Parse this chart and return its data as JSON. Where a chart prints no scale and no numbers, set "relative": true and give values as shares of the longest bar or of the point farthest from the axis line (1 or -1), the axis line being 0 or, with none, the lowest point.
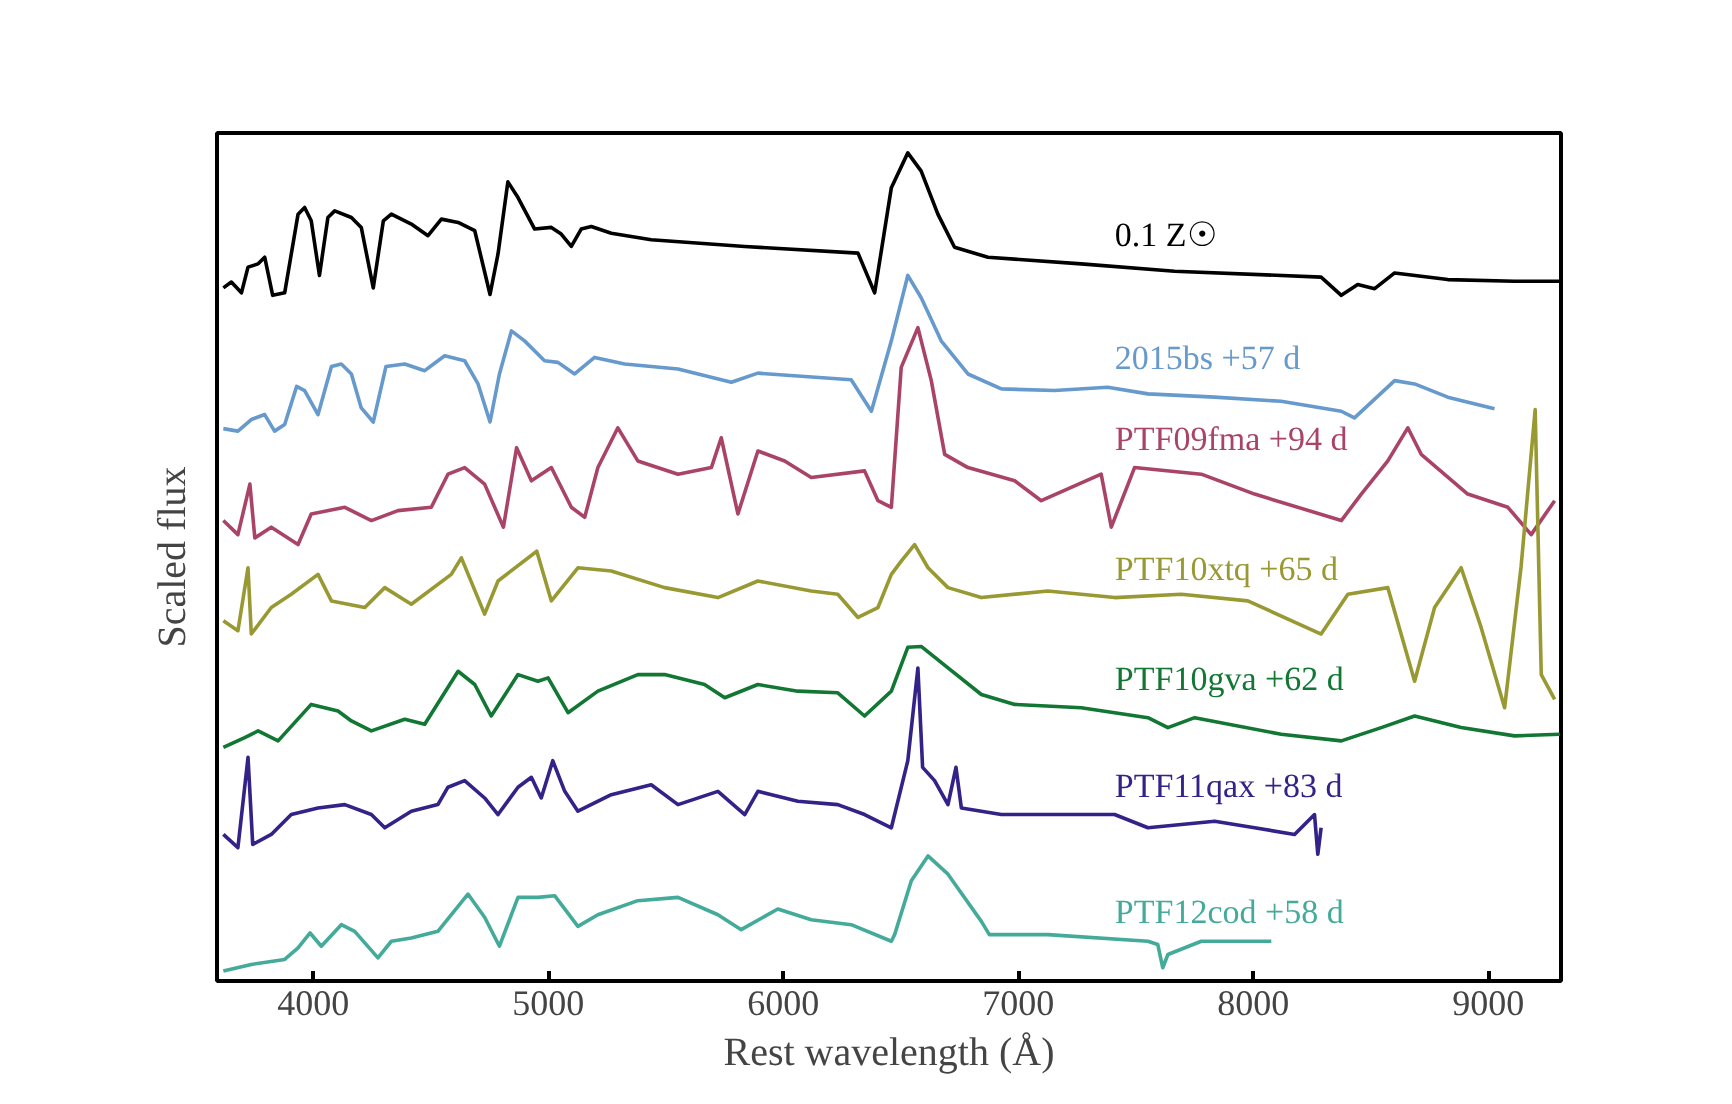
{
  "chart_data": {
    "type": "line",
    "relative": true,
    "xlabel": "Rest wavelength (Å)",
    "ylabel": "Scaled flux",
    "xlim": [
      3590,
      9310
    ],
    "xticks": [
      4000,
      5000,
      6000,
      7000,
      8000,
      9000
    ],
    "tick_labels": "x",
    "grid": false,
    "marker": "none",
    "line_style": "solid",
    "series": [
      {
        "name": "0.1 Z☉",
        "color": "#000000",
        "x": [
          3617,
          3651,
          3694,
          3722,
          3765,
          3793,
          3827,
          3878,
          3935,
          3963,
          3991,
          4026,
          4062,
          4091,
          4162,
          4204,
          4255,
          4298,
          4332,
          4417,
          4488,
          4545,
          4616,
          4687,
          4752,
          4786,
          4828,
          4871,
          4942,
          5013,
          5055,
          5098,
          5140,
          5183,
          5268,
          5438,
          5836,
          6318,
          6389,
          6460,
          6530,
          6587,
          6658,
          6729,
          6871,
          7268,
          7665,
          8289,
          8375,
          8445,
          8517,
          8602,
          8828,
          9112,
          9305
        ],
        "values": [
          0.837,
          0.844,
          0.831,
          0.862,
          0.866,
          0.874,
          0.828,
          0.831,
          0.926,
          0.934,
          0.918,
          0.852,
          0.922,
          0.93,
          0.922,
          0.91,
          0.837,
          0.918,
          0.926,
          0.914,
          0.9,
          0.92,
          0.916,
          0.906,
          0.829,
          0.878,
          0.965,
          0.946,
          0.908,
          0.91,
          0.902,
          0.887,
          0.908,
          0.911,
          0.903,
          0.895,
          0.887,
          0.879,
          0.831,
          0.958,
          1.0,
          0.978,
          0.926,
          0.886,
          0.874,
          0.866,
          0.857,
          0.85,
          0.828,
          0.841,
          0.836,
          0.855,
          0.847,
          0.845,
          0.845
        ]
      },
      {
        "name": "2015bs +57 d",
        "color": "#6699cc",
        "x": [
          3617,
          3679,
          3736,
          3793,
          3835,
          3878,
          3929,
          3963,
          4020,
          4077,
          4119,
          4162,
          4204,
          4255,
          4309,
          4389,
          4474,
          4559,
          4644,
          4701,
          4752,
          4792,
          4843,
          4899,
          4984,
          5041,
          5112,
          5197,
          5325,
          5552,
          5779,
          5892,
          6289,
          6375,
          6460,
          6530,
          6587,
          6672,
          6786,
          6928,
          7155,
          7381,
          7552,
          7836,
          8119,
          8375,
          8431,
          8602,
          8687,
          8828,
          9027
        ],
        "values": [
          0.667,
          0.664,
          0.678,
          0.684,
          0.664,
          0.672,
          0.718,
          0.713,
          0.684,
          0.742,
          0.745,
          0.733,
          0.692,
          0.675,
          0.742,
          0.745,
          0.737,
          0.755,
          0.749,
          0.721,
          0.675,
          0.733,
          0.785,
          0.773,
          0.749,
          0.747,
          0.733,
          0.753,
          0.745,
          0.739,
          0.723,
          0.734,
          0.726,
          0.688,
          0.773,
          0.852,
          0.825,
          0.773,
          0.733,
          0.715,
          0.713,
          0.717,
          0.709,
          0.705,
          0.7,
          0.688,
          0.68,
          0.725,
          0.721,
          0.705,
          0.691
        ]
      },
      {
        "name": "PTF09fma +94 d",
        "color": "#aa4466",
        "x": [
          3617,
          3679,
          3730,
          3751,
          3821,
          3935,
          3991,
          4134,
          4247,
          4360,
          4502,
          4573,
          4644,
          4729,
          4809,
          4865,
          4928,
          5013,
          5098,
          5155,
          5211,
          5296,
          5381,
          5552,
          5694,
          5736,
          5807,
          5892,
          6006,
          6119,
          6346,
          6403,
          6460,
          6502,
          6573,
          6630,
          6687,
          6786,
          6985,
          7098,
          7353,
          7396,
          7495,
          7779,
          8006,
          8375,
          8460,
          8573,
          8658,
          8715,
          8913,
          9084,
          9183,
          9283
        ],
        "values": [
          0.556,
          0.539,
          0.6,
          0.535,
          0.548,
          0.527,
          0.564,
          0.572,
          0.556,
          0.568,
          0.572,
          0.612,
          0.62,
          0.6,
          0.548,
          0.644,
          0.604,
          0.62,
          0.572,
          0.56,
          0.62,
          0.668,
          0.628,
          0.612,
          0.62,
          0.656,
          0.564,
          0.64,
          0.628,
          0.608,
          0.616,
          0.58,
          0.572,
          0.741,
          0.789,
          0.725,
          0.636,
          0.62,
          0.604,
          0.58,
          0.612,
          0.548,
          0.62,
          0.612,
          0.588,
          0.556,
          0.588,
          0.628,
          0.668,
          0.636,
          0.588,
          0.572,
          0.539,
          0.58
        ]
      },
      {
        "name": "PTF10xtq +65 d",
        "color": "#999933",
        "x": [
          3617,
          3679,
          3722,
          3736,
          3821,
          3906,
          4020,
          4077,
          4219,
          4304,
          4417,
          4587,
          4630,
          4729,
          4786,
          4951,
          5013,
          5126,
          5268,
          5495,
          5722,
          5892,
          6119,
          6232,
          6318,
          6403,
          6460,
          6502,
          6559,
          6616,
          6701,
          6843,
          7126,
          7410,
          7694,
          7977,
          8289,
          8403,
          8573,
          8687,
          8772,
          8885,
          8970,
          9070,
          9140,
          9200,
          9226,
          9283
        ],
        "values": [
          0.435,
          0.423,
          0.499,
          0.419,
          0.451,
          0.467,
          0.491,
          0.459,
          0.451,
          0.475,
          0.455,
          0.491,
          0.511,
          0.443,
          0.483,
          0.519,
          0.459,
          0.499,
          0.495,
          0.475,
          0.463,
          0.483,
          0.471,
          0.467,
          0.439,
          0.451,
          0.491,
          0.507,
          0.527,
          0.499,
          0.475,
          0.463,
          0.471,
          0.463,
          0.467,
          0.459,
          0.419,
          0.467,
          0.475,
          0.362,
          0.451,
          0.499,
          0.427,
          0.33,
          0.5,
          0.69,
          0.37,
          0.34
        ]
      },
      {
        "name": "PTF10gva +62 d",
        "color": "#117733",
        "x": [
          3617,
          3708,
          3765,
          3850,
          3991,
          4105,
          4162,
          4247,
          4389,
          4474,
          4616,
          4687,
          4757,
          4871,
          4956,
          4999,
          5084,
          5211,
          5381,
          5495,
          5665,
          5751,
          5892,
          6062,
          6232,
          6346,
          6460,
          6530,
          6587,
          6701,
          6843,
          6985,
          7268,
          7552,
          7637,
          7751,
          8119,
          8375,
          8545,
          8687,
          8885,
          9112,
          9305
        ],
        "values": [
          0.282,
          0.294,
          0.302,
          0.29,
          0.334,
          0.326,
          0.314,
          0.302,
          0.316,
          0.31,
          0.374,
          0.358,
          0.32,
          0.37,
          0.362,
          0.366,
          0.324,
          0.35,
          0.37,
          0.37,
          0.358,
          0.342,
          0.358,
          0.35,
          0.348,
          0.32,
          0.35,
          0.403,
          0.404,
          0.378,
          0.346,
          0.334,
          0.33,
          0.318,
          0.306,
          0.318,
          0.298,
          0.29,
          0.306,
          0.32,
          0.306,
          0.296,
          0.298
        ]
      },
      {
        "name": "PTF11qax +83 d",
        "color": "#332288",
        "x": [
          3617,
          3679,
          3722,
          3742,
          3821,
          3906,
          4020,
          4134,
          4247,
          4304,
          4417,
          4530,
          4573,
          4644,
          4729,
          4786,
          4871,
          4928,
          4970,
          5019,
          5070,
          5126,
          5268,
          5438,
          5552,
          5722,
          5836,
          5892,
          6062,
          6232,
          6346,
          6460,
          6530,
          6573,
          6593,
          6644,
          6701,
          6735,
          6758,
          6928,
          7126,
          7410,
          7552,
          7836,
          8006,
          8176,
          8261,
          8275,
          8289
        ],
        "values": [
          0.177,
          0.161,
          0.27,
          0.165,
          0.177,
          0.201,
          0.209,
          0.213,
          0.201,
          0.185,
          0.205,
          0.213,
          0.234,
          0.242,
          0.221,
          0.201,
          0.234,
          0.246,
          0.221,
          0.266,
          0.229,
          0.205,
          0.225,
          0.237,
          0.213,
          0.229,
          0.201,
          0.229,
          0.217,
          0.213,
          0.201,
          0.185,
          0.266,
          0.378,
          0.258,
          0.242,
          0.213,
          0.258,
          0.209,
          0.201,
          0.201,
          0.201,
          0.185,
          0.193,
          0.185,
          0.177,
          0.201,
          0.153,
          0.185
        ]
      },
      {
        "name": "PTF12cod +58 d",
        "color": "#44aa99",
        "x": [
          3617,
          3736,
          3878,
          3935,
          3986,
          4034,
          4119,
          4176,
          4275,
          4332,
          4417,
          4530,
          4658,
          4729,
          4792,
          4871,
          4956,
          5027,
          5126,
          5211,
          5381,
          5552,
          5722,
          5821,
          5977,
          6119,
          6289,
          6460,
          6474,
          6545,
          6616,
          6701,
          6843,
          6877,
          7126,
          7552,
          7594,
          7615,
          7637,
          7779,
          8077
        ],
        "values": [
          0.012,
          0.02,
          0.026,
          0.04,
          0.058,
          0.042,
          0.068,
          0.06,
          0.028,
          0.048,
          0.052,
          0.06,
          0.105,
          0.077,
          0.042,
          0.101,
          0.101,
          0.103,
          0.066,
          0.08,
          0.097,
          0.101,
          0.08,
          0.062,
          0.087,
          0.074,
          0.068,
          0.048,
          0.056,
          0.121,
          0.151,
          0.129,
          0.072,
          0.056,
          0.056,
          0.048,
          0.044,
          0.016,
          0.032,
          0.048,
          0.048
        ]
      }
    ]
  }
}
